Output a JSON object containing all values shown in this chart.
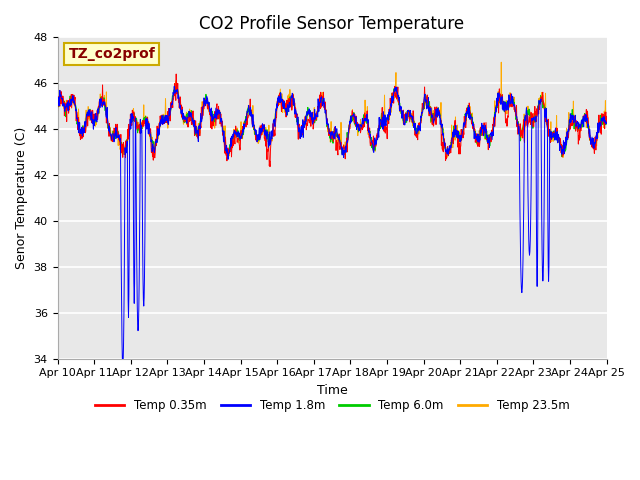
{
  "title": "CO2 Profile Sensor Temperature",
  "ylabel": "Senor Temperature (C)",
  "xlabel": "Time",
  "ylim": [
    34,
    48
  ],
  "yticks": [
    34,
    36,
    38,
    40,
    42,
    44,
    46,
    48
  ],
  "xtick_labels": [
    "Apr 10",
    "Apr 11",
    "Apr 12",
    "Apr 13",
    "Apr 14",
    "Apr 15",
    "Apr 16",
    "Apr 17",
    "Apr 18",
    "Apr 19",
    "Apr 20",
    "Apr 21",
    "Apr 22",
    "Apr 23",
    "Apr 24",
    "Apr 25"
  ],
  "colors": {
    "temp_035": "#ff0000",
    "temp_18": "#0000ff",
    "temp_60": "#00cc00",
    "temp_235": "#ffaa00"
  },
  "legend_labels": [
    "Temp 0.35m",
    "Temp 1.8m",
    "Temp 6.0m",
    "Temp 23.5m"
  ],
  "annotation_text": "TZ_co2prof",
  "annotation_color": "#880000",
  "annotation_bg": "#ffffcc",
  "annotation_edge": "#ccaa00",
  "bg_color": "#ffffff",
  "plot_bg": "#e8e8e8",
  "grid_color": "#ffffff",
  "title_fontsize": 12,
  "label_fontsize": 9,
  "tick_fontsize": 8
}
